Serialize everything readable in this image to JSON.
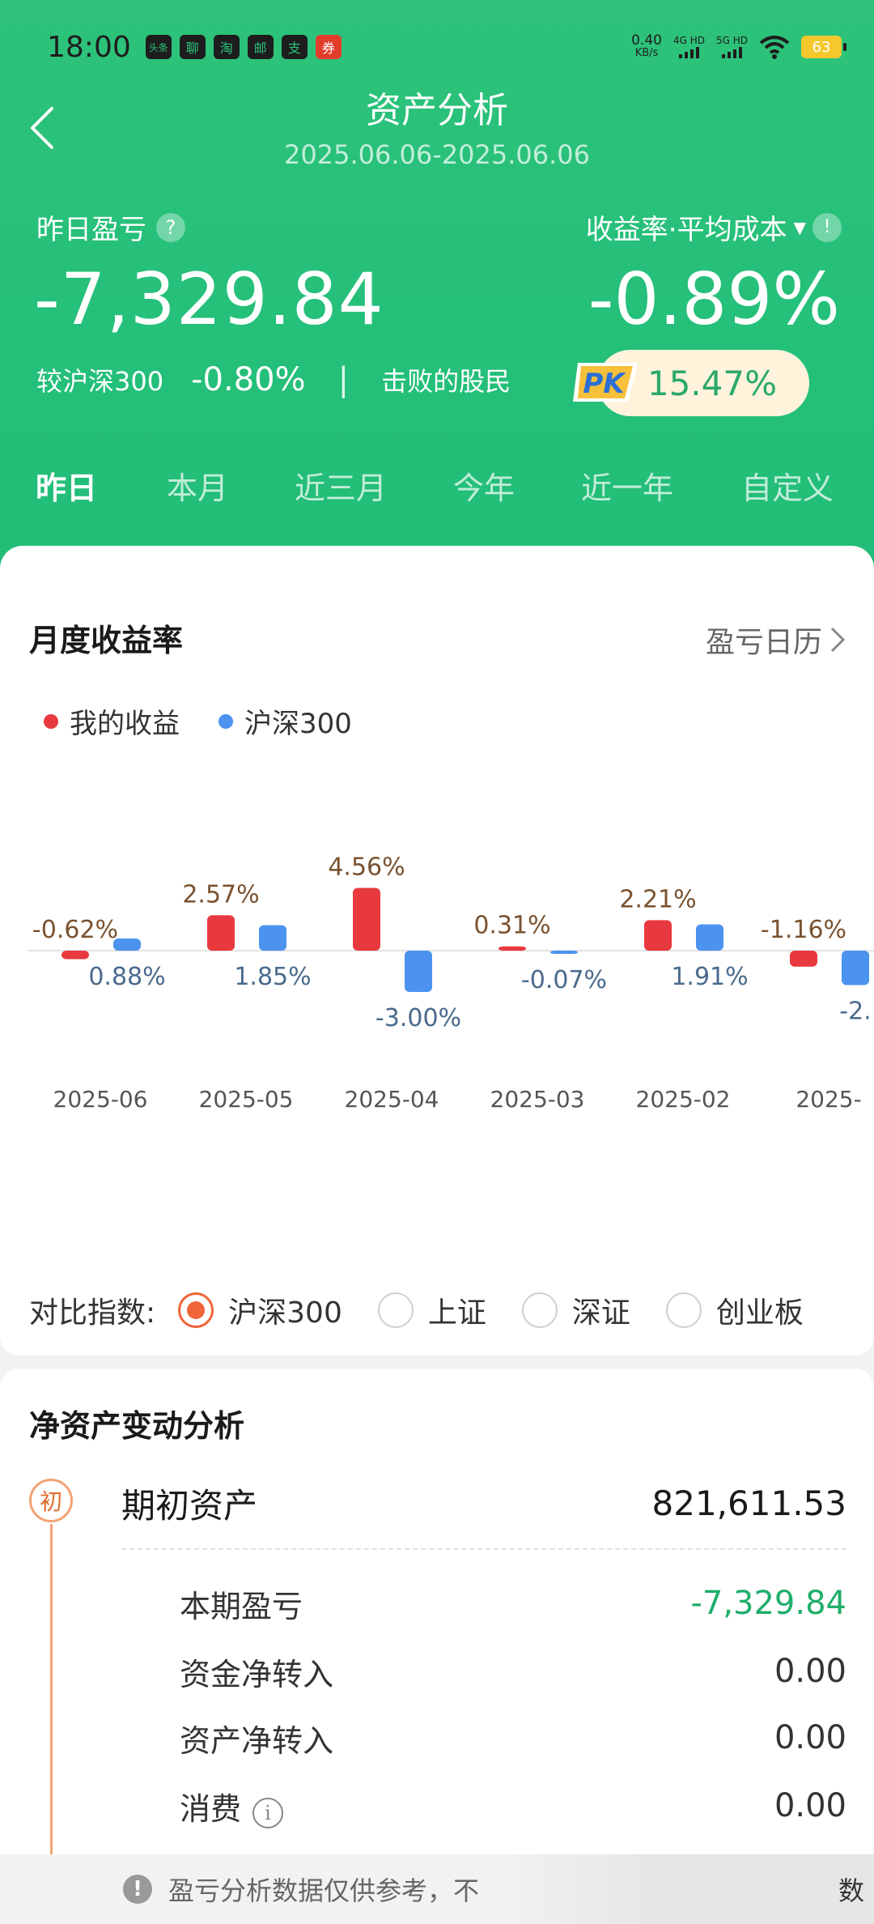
{
  "status_bar": {
    "time": "18:00",
    "apps": [
      "头条",
      "聊",
      "淘",
      "邮",
      "支",
      "券"
    ],
    "net_speed": "0.40",
    "net_unit": "KB/s",
    "sim1": "4G HD",
    "sim2": "5G HD",
    "battery": "63"
  },
  "header": {
    "title": "资产分析",
    "date_range": "2025.06.06-2025.06.06",
    "left_label": "昨日盈亏",
    "right_label": "收益率·平均成本",
    "pnl": "-7,329.84",
    "return_rate": "-0.89%",
    "compare_label": "较沪深300",
    "compare_value": "-0.80%",
    "separator": "|",
    "beat_label": "击败的股民",
    "pk_label": "PK",
    "beat_value": "15.47%"
  },
  "tabs": [
    "昨日",
    "本月",
    "近三月",
    "今年",
    "近一年",
    "自定义"
  ],
  "monthly": {
    "title": "月度收益率",
    "calendar_link": "盈亏日历",
    "legend": [
      {
        "name": "我的收益",
        "color": "#e8393f"
      },
      {
        "name": "沪深300",
        "color": "#4b93ef"
      }
    ],
    "index_label": "对比指数:",
    "index_options": [
      "沪深300",
      "上证",
      "深证",
      "创业板"
    ],
    "index_selected": "沪深300"
  },
  "chart_data": {
    "type": "bar",
    "categories": [
      "2025-06",
      "2025-05",
      "2025-04",
      "2025-03",
      "2025-02",
      "2025-"
    ],
    "series": [
      {
        "name": "我的收益",
        "color": "#e8393f",
        "values": [
          -0.62,
          2.57,
          4.56,
          0.31,
          2.21,
          -1.16
        ]
      },
      {
        "name": "沪深300",
        "color": "#4b93ef",
        "values": [
          0.88,
          1.85,
          -3.0,
          -0.07,
          1.91,
          -2.5
        ]
      }
    ],
    "labels_mine": [
      "-0.62%",
      "2.57%",
      "4.56%",
      "0.31%",
      "2.21%",
      "-1.16%"
    ],
    "labels_index": [
      "0.88%",
      "1.85%",
      "-3.00%",
      "-0.07%",
      "1.91%",
      "-2."
    ],
    "ylim": [
      -6,
      6
    ]
  },
  "net_asset": {
    "title": "净资产变动分析",
    "badge": "初",
    "opening_label": "期初资产",
    "opening_value": "821,611.53",
    "rows": [
      {
        "label": "本期盈亏",
        "value": "-7,329.84"
      },
      {
        "label": "资金净转入",
        "value": "0.00"
      },
      {
        "label": "资产净转入",
        "value": "0.00"
      },
      {
        "label": "消费",
        "value": "0.00"
      }
    ],
    "info_icon": "i"
  },
  "notice": {
    "text": "盈亏分析数据仅供参考，不",
    "tail": "数"
  }
}
